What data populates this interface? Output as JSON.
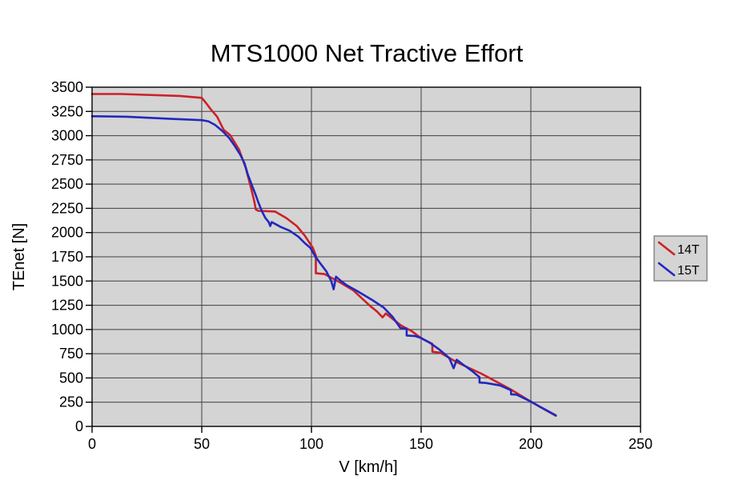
{
  "page": {
    "background": "#ffffff"
  },
  "chart_data": {
    "type": "line",
    "title": "MTS1000 Net Tractive Effort",
    "xlabel": "V [km/h]",
    "ylabel": "TEnet [N]",
    "xlim": [
      0,
      250
    ],
    "ylim": [
      0,
      3500
    ],
    "xticks": [
      0,
      50,
      100,
      150,
      200,
      250
    ],
    "yticks": [
      0,
      250,
      500,
      750,
      1000,
      1250,
      1500,
      1750,
      2000,
      2250,
      2500,
      2750,
      3000,
      3250,
      3500
    ],
    "grid": true,
    "plot_background": "#d4d4d4",
    "gridline_color": "#3f3f3f",
    "axis_color": "#000000",
    "legend": {
      "position": "right-outside",
      "background": "#d4d4d4",
      "border_color": "#808080",
      "entries": [
        {
          "label": "14T",
          "color": "#cc2128"
        },
        {
          "label": "15T",
          "color": "#2228bd"
        }
      ]
    },
    "series": [
      {
        "name": "14T",
        "color": "#cc2128",
        "points": [
          [
            0,
            3430
          ],
          [
            13,
            3430
          ],
          [
            40,
            3410
          ],
          [
            50,
            3390
          ],
          [
            52,
            3335
          ],
          [
            54,
            3275
          ],
          [
            57,
            3195
          ],
          [
            60,
            3060
          ],
          [
            63,
            3005
          ],
          [
            67,
            2855
          ],
          [
            70,
            2670
          ],
          [
            72.4,
            2465
          ],
          [
            74,
            2315
          ],
          [
            74.6,
            2240
          ],
          [
            75.7,
            2225
          ],
          [
            83.4,
            2217
          ],
          [
            88.5,
            2150
          ],
          [
            93.3,
            2068
          ],
          [
            96.9,
            1970
          ],
          [
            100.6,
            1845
          ],
          [
            102,
            1762
          ],
          [
            102,
            1580
          ],
          [
            106,
            1572
          ],
          [
            112.7,
            1490
          ],
          [
            118.9,
            1407
          ],
          [
            126.9,
            1240
          ],
          [
            129.9,
            1185
          ],
          [
            132.4,
            1125
          ],
          [
            133.9,
            1165
          ],
          [
            140.8,
            1042
          ],
          [
            145.6,
            985
          ],
          [
            150,
            910
          ],
          [
            155.1,
            852
          ],
          [
            155.1,
            770
          ],
          [
            158.7,
            760
          ],
          [
            166.4,
            660
          ],
          [
            177.4,
            545
          ],
          [
            191,
            380
          ],
          [
            200.4,
            250
          ],
          [
            211.4,
            110
          ]
        ]
      },
      {
        "name": "15T",
        "color": "#2228bd",
        "points": [
          [
            0,
            3200
          ],
          [
            16,
            3195
          ],
          [
            35,
            3175
          ],
          [
            50,
            3160
          ],
          [
            53,
            3148
          ],
          [
            56,
            3112
          ],
          [
            58,
            3075
          ],
          [
            60,
            3035
          ],
          [
            62.5,
            2975
          ],
          [
            65,
            2895
          ],
          [
            67.5,
            2805
          ],
          [
            69.5,
            2715
          ],
          [
            71,
            2600
          ],
          [
            73,
            2480
          ],
          [
            74.5,
            2395
          ],
          [
            76,
            2300
          ],
          [
            77.5,
            2215
          ],
          [
            79,
            2150
          ],
          [
            80.5,
            2108
          ],
          [
            81.2,
            2068
          ],
          [
            81.9,
            2108
          ],
          [
            83,
            2095
          ],
          [
            86,
            2058
          ],
          [
            90,
            2020
          ],
          [
            94,
            1958
          ],
          [
            97,
            1890
          ],
          [
            99.5,
            1843
          ],
          [
            101.5,
            1762
          ],
          [
            104,
            1682
          ],
          [
            106.8,
            1600
          ],
          [
            109,
            1500
          ],
          [
            110.1,
            1415
          ],
          [
            111.2,
            1545
          ],
          [
            113.5,
            1500
          ],
          [
            116,
            1458
          ],
          [
            121,
            1395
          ],
          [
            128,
            1300
          ],
          [
            133,
            1225
          ],
          [
            137,
            1130
          ],
          [
            140.5,
            1015
          ],
          [
            143.4,
            1008
          ],
          [
            143.4,
            938
          ],
          [
            147.3,
            932
          ],
          [
            150,
            912
          ],
          [
            154,
            862
          ],
          [
            158,
            798
          ],
          [
            161,
            742
          ],
          [
            162.8,
            705
          ],
          [
            164.8,
            600
          ],
          [
            166.2,
            688
          ],
          [
            169,
            640
          ],
          [
            173,
            575
          ],
          [
            176.6,
            508
          ],
          [
            176.6,
            452
          ],
          [
            179.5,
            448
          ],
          [
            186,
            423
          ],
          [
            191,
            372
          ],
          [
            191,
            331
          ],
          [
            193.5,
            328
          ],
          [
            197,
            290
          ],
          [
            200.5,
            250
          ],
          [
            205,
            192
          ],
          [
            211.4,
            115
          ]
        ]
      }
    ]
  }
}
